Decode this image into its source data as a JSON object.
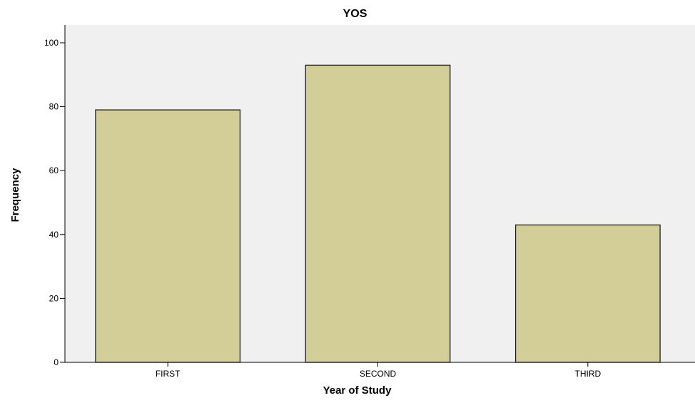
{
  "chart_data": {
    "type": "bar",
    "title": "YOS",
    "xlabel": "Year of Study",
    "ylabel": "Frequency",
    "categories": [
      "FIRST",
      "SECOND",
      "THIRD"
    ],
    "values": [
      79,
      93,
      43
    ],
    "ylim": [
      0,
      100
    ],
    "yticks": [
      0,
      20,
      40,
      60,
      80,
      100
    ],
    "grid": false,
    "legend": "none",
    "colors": {
      "bar_fill": "#d3ce97",
      "bar_stroke": "#222222",
      "plot_background": "#f0f0f0",
      "axis": "#000000"
    }
  }
}
